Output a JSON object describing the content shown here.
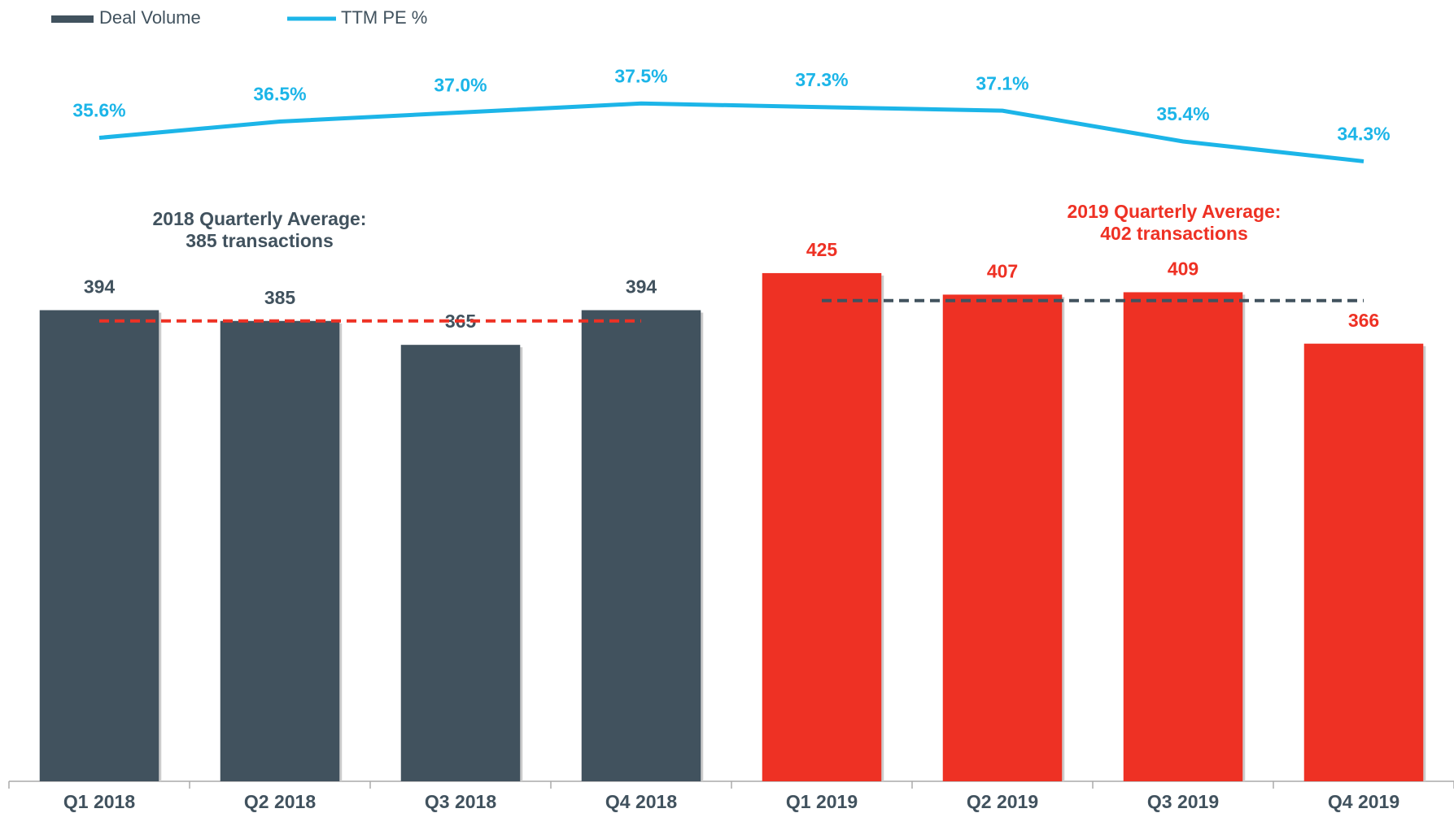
{
  "chart_data": {
    "type": "bar",
    "categories": [
      "Q1 2018",
      "Q2 2018",
      "Q3 2018",
      "Q4 2018",
      "Q1 2019",
      "Q2 2019",
      "Q3 2019",
      "Q4 2019"
    ],
    "series": [
      {
        "name": "Deal Volume",
        "type": "bar",
        "color": "#41525e",
        "colors": [
          "#41525e",
          "#41525e",
          "#41525e",
          "#41525e",
          "#ee3124",
          "#ee3124",
          "#ee3124",
          "#ee3124"
        ],
        "values": [
          394,
          385,
          365,
          394,
          425,
          407,
          409,
          366
        ]
      },
      {
        "name": "TTM PE %",
        "type": "line",
        "axis": "y2",
        "color": "#1cb5e8",
        "values": [
          35.6,
          36.5,
          37.0,
          37.5,
          37.3,
          37.1,
          35.4,
          34.3
        ],
        "value_labels": [
          "35.6%",
          "36.5%",
          "37.0%",
          "37.5%",
          "37.3%",
          "37.1%",
          "35.4%",
          "34.3%"
        ]
      }
    ],
    "ylim": [
      0,
      650
    ],
    "y2lim": [
      0,
      43
    ],
    "reference_lines": [
      {
        "value": 385,
        "color": "#ee3124",
        "from": 0,
        "to": 3,
        "label_color": "#41525e",
        "label": [
          "2018 Quarterly Average:",
          "385 transactions"
        ]
      },
      {
        "value": 402,
        "color": "#41525e",
        "from": 4,
        "to": 7,
        "label_color": "#ee3124",
        "label": [
          "2019 Quarterly Average:",
          "402 transactions"
        ]
      }
    ],
    "legend": "top-left"
  }
}
